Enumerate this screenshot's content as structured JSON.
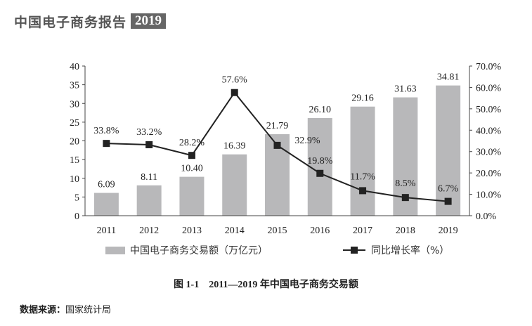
{
  "header": {
    "title": "中国电子商务报告",
    "year": "2019"
  },
  "caption": "图 1-1　2011—2019 年中国电子商务交易额",
  "source": {
    "label": "数据来源：",
    "value": "国家统计局"
  },
  "chart_data": {
    "type": "bar+line",
    "categories": [
      "2011",
      "2012",
      "2013",
      "2014",
      "2015",
      "2016",
      "2017",
      "2018",
      "2019"
    ],
    "series": [
      {
        "name": "中国电子商务交易额（万亿元）",
        "type": "bar",
        "axis": "left",
        "color": "#b8b8ba",
        "values": [
          6.09,
          8.11,
          10.4,
          16.39,
          21.79,
          26.1,
          29.16,
          31.63,
          34.81
        ],
        "labels": [
          "6.09",
          "8.11",
          "10.40",
          "16.39",
          "21.79",
          "26.10",
          "29.16",
          "31.63",
          "34.81"
        ]
      },
      {
        "name": "同比增长率（%）",
        "type": "line",
        "axis": "right",
        "color": "#222222",
        "marker": "square",
        "values": [
          33.8,
          33.2,
          28.2,
          57.6,
          32.9,
          19.8,
          11.7,
          8.5,
          6.7
        ],
        "labels": [
          "33.8%",
          "33.2%",
          "28.2%",
          "57.6%",
          "32.9%",
          "19.8%",
          "11.7%",
          "8.5%",
          "6.7%"
        ]
      }
    ],
    "y_left": {
      "range": [
        0,
        40
      ],
      "ticks": [
        "0",
        "5",
        "10",
        "15",
        "20",
        "25",
        "30",
        "35",
        "40"
      ]
    },
    "y_right": {
      "range": [
        0,
        70
      ],
      "ticks": [
        "0.0%",
        "10.0%",
        "20.0%",
        "30.0%",
        "40.0%",
        "50.0%",
        "60.0%",
        "70.0%"
      ]
    },
    "grid": false,
    "legend": "bottom"
  }
}
